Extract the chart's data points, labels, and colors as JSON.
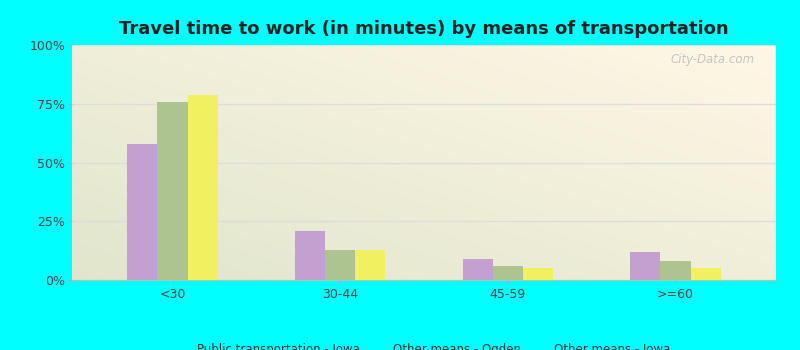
{
  "title": "Travel time to work (in minutes) by means of transportation",
  "categories": [
    "<30",
    "30-44",
    "45-59",
    ">=60"
  ],
  "series": {
    "Public transportation - Iowa": [
      58,
      21,
      9,
      12
    ],
    "Other means - Ogden": [
      76,
      13,
      6,
      8
    ],
    "Other means - Iowa": [
      79,
      13,
      5,
      5
    ]
  },
  "colors": {
    "Public transportation - Iowa": "#c4a0d0",
    "Other means - Ogden": "#adc490",
    "Other means - Iowa": "#f0f060"
  },
  "bar_width": 0.18,
  "ylim": [
    0,
    100
  ],
  "yticks": [
    0,
    25,
    50,
    75,
    100
  ],
  "ytick_labels": [
    "0%",
    "25%",
    "50%",
    "75%",
    "100%"
  ],
  "outer_background": "#00ffff",
  "title_fontsize": 13,
  "legend_fontsize": 8.5,
  "tick_fontsize": 9,
  "watermark": "City-Data.com"
}
